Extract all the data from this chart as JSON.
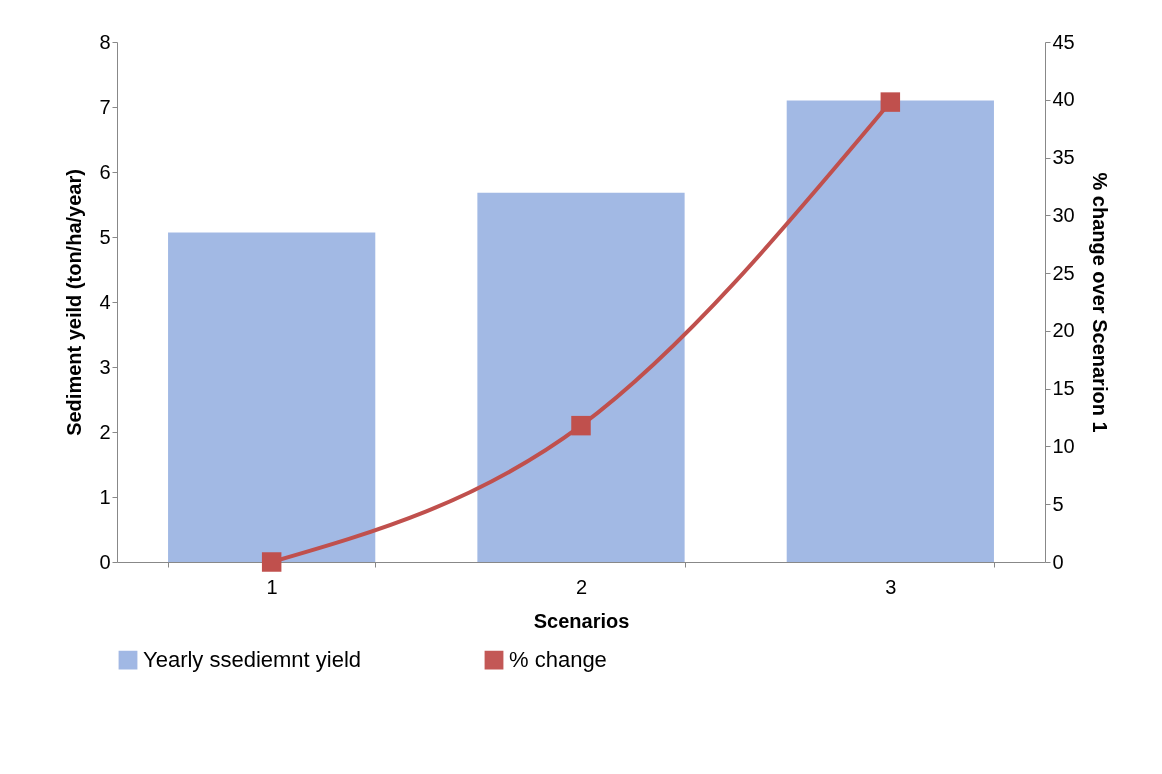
{
  "chart_data": {
    "type": "bar",
    "xlabel": "Scenarios",
    "ylabel": "Sediment yeild (ton/ha/year)",
    "y2label": "% change over Scenarion 1",
    "categories": [
      "1",
      "2",
      "3"
    ],
    "series": [
      {
        "name": "Yearly ssediemnt yield",
        "color": "#9db5e3",
        "values": [
          5.07,
          5.68,
          7.1
        ]
      },
      {
        "name": "% change",
        "type": "line",
        "axis": "y2",
        "color": "#c0504d",
        "values": [
          0,
          11.8,
          39.8
        ]
      }
    ],
    "ylim": [
      0,
      8
    ],
    "yticks": [
      0,
      1,
      2,
      3,
      4,
      5,
      6,
      7,
      8
    ],
    "y2lim": [
      0,
      45
    ],
    "y2ticks": [
      0,
      5,
      10,
      15,
      20,
      25,
      30,
      35,
      40,
      45
    ],
    "grid": false,
    "legend": "bottom",
    "marker": "square",
    "line_style": "solid"
  }
}
